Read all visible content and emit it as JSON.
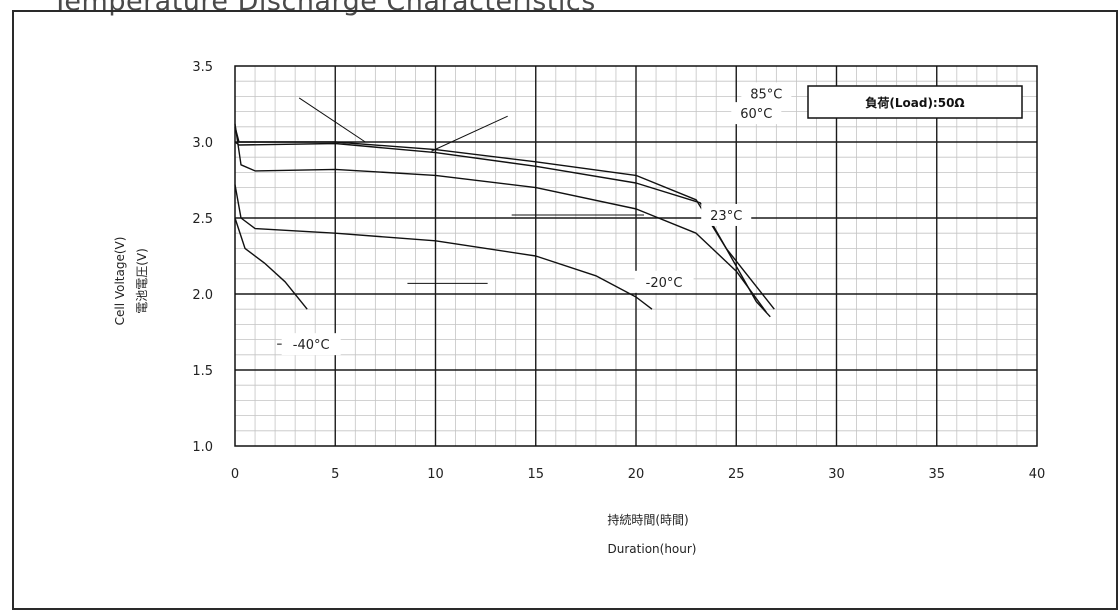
{
  "page": {
    "title": "Temperature Discharge Characteristics"
  },
  "chart_data": {
    "type": "line",
    "title": "Temperature Discharge Characteristics",
    "xlabel_jp": "持続時間(時間)",
    "xlabel_en": "Duration(hour)",
    "ylabel_en": "Cell Voltage(V)",
    "ylabel_jp": "電池電圧(V)",
    "xlim": [
      0,
      40
    ],
    "ylim": [
      1.0,
      3.5
    ],
    "xticks": [
      "0",
      "5",
      "10",
      "15",
      "20",
      "25",
      "30",
      "35",
      "40"
    ],
    "yticks": [
      "3.5",
      "3.0",
      "2.5",
      "2.0",
      "1.5",
      "1.0"
    ],
    "grid": true,
    "legend_box": "負荷(Load):50Ω",
    "series": [
      {
        "name": "85°C",
        "points": [
          [
            0,
            3.1
          ],
          [
            0.2,
            3.0
          ],
          [
            2,
            3.0
          ],
          [
            5,
            3.0
          ],
          [
            10,
            2.95
          ],
          [
            15,
            2.87
          ],
          [
            20,
            2.78
          ],
          [
            23,
            2.62
          ],
          [
            24.5,
            2.3
          ],
          [
            26,
            1.95
          ],
          [
            26.7,
            1.85
          ]
        ]
      },
      {
        "name": "60°C",
        "points": [
          [
            0,
            3.0
          ],
          [
            0.2,
            2.98
          ],
          [
            5,
            2.99
          ],
          [
            10,
            2.93
          ],
          [
            15,
            2.84
          ],
          [
            20,
            2.73
          ],
          [
            23.2,
            2.6
          ],
          [
            24.5,
            2.3
          ],
          [
            26,
            2.05
          ],
          [
            26.9,
            1.9
          ]
        ]
      },
      {
        "name": "23°C",
        "points": [
          [
            0,
            3.12
          ],
          [
            0.3,
            2.85
          ],
          [
            1,
            2.81
          ],
          [
            5,
            2.82
          ],
          [
            10,
            2.78
          ],
          [
            15,
            2.7
          ],
          [
            20,
            2.56
          ],
          [
            23,
            2.4
          ],
          [
            25,
            2.15
          ],
          [
            26.5,
            1.88
          ]
        ]
      },
      {
        "name": "-20°C",
        "points": [
          [
            0,
            2.72
          ],
          [
            0.3,
            2.5
          ],
          [
            1,
            2.43
          ],
          [
            5,
            2.4
          ],
          [
            10,
            2.35
          ],
          [
            15,
            2.25
          ],
          [
            18,
            2.12
          ],
          [
            20,
            1.98
          ],
          [
            20.8,
            1.9
          ]
        ]
      },
      {
        "name": "-40°C",
        "points": [
          [
            0,
            2.5
          ],
          [
            0.5,
            2.3
          ],
          [
            1.5,
            2.2
          ],
          [
            2.5,
            2.08
          ],
          [
            3.6,
            1.9
          ]
        ]
      }
    ]
  }
}
